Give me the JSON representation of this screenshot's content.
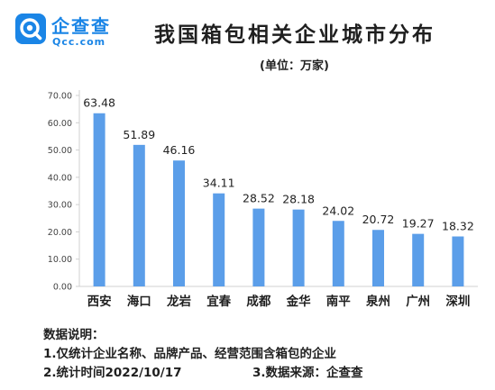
{
  "brand": {
    "name": "企查查",
    "domain": "Qcc.com",
    "accent": "#1a85e6"
  },
  "title": "我国箱包相关企业城市分布",
  "unit": "(单位：万家)",
  "chart_data": {
    "type": "bar",
    "categories": [
      "西安",
      "海口",
      "龙岩",
      "宜春",
      "成都",
      "金华",
      "南平",
      "泉州",
      "广州",
      "深圳"
    ],
    "values": [
      63.48,
      51.89,
      46.16,
      34.11,
      28.52,
      28.18,
      24.02,
      20.72,
      19.27,
      18.32
    ],
    "value_labels": [
      "63.48",
      "51.89",
      "46.16",
      "34.11",
      "28.52",
      "28.18",
      "24.02",
      "20.72",
      "19.27",
      "18.32"
    ],
    "yticks": [
      "0.00",
      "10.00",
      "20.00",
      "30.00",
      "40.00",
      "50.00",
      "60.00",
      "70.00"
    ],
    "ylim": [
      0,
      70
    ],
    "grid": false,
    "bar_color": "#5b9ee9",
    "axis_color": "#d0d0d0"
  },
  "notes": {
    "heading": "数据说明：",
    "line1": "1.仅统计企业名称、品牌产品、经营范围含箱包的企业",
    "line2": "2.统计时间2022/10/17",
    "line3": "3.数据来源：企查查"
  }
}
